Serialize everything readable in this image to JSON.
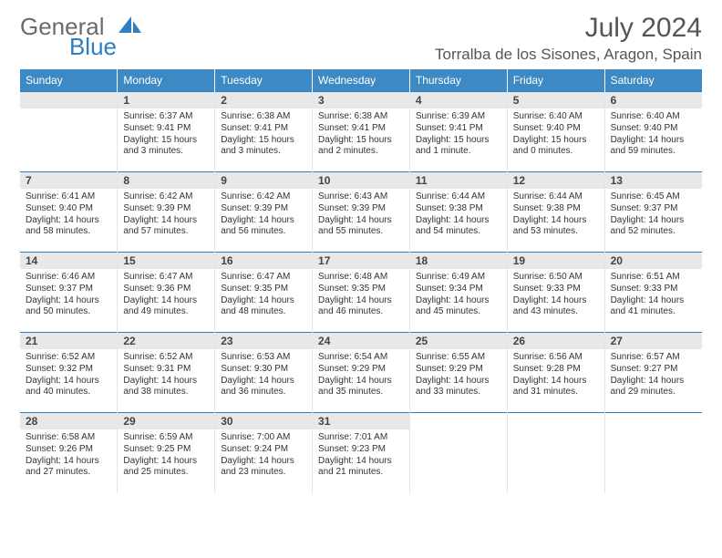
{
  "brand": {
    "part1": "General",
    "part2": "Blue"
  },
  "header": {
    "month_title": "July 2024",
    "location": "Torralba de los Sisones, Aragon, Spain"
  },
  "colors": {
    "header_bg": "#3d89c3",
    "header_text": "#ffffff",
    "row_border": "#2d7fc1",
    "daynum_bg": "#e8e8e8",
    "text": "#333333",
    "brand_gray": "#6b6b6b",
    "brand_blue": "#2d7fc1"
  },
  "weekdays": [
    "Sunday",
    "Monday",
    "Tuesday",
    "Wednesday",
    "Thursday",
    "Friday",
    "Saturday"
  ],
  "layout": {
    "first_weekday_index": 1,
    "days_in_month": 31
  },
  "days": [
    {
      "n": 1,
      "sunrise": "6:37 AM",
      "sunset": "9:41 PM",
      "daylight": "15 hours and 3 minutes."
    },
    {
      "n": 2,
      "sunrise": "6:38 AM",
      "sunset": "9:41 PM",
      "daylight": "15 hours and 3 minutes."
    },
    {
      "n": 3,
      "sunrise": "6:38 AM",
      "sunset": "9:41 PM",
      "daylight": "15 hours and 2 minutes."
    },
    {
      "n": 4,
      "sunrise": "6:39 AM",
      "sunset": "9:41 PM",
      "daylight": "15 hours and 1 minute."
    },
    {
      "n": 5,
      "sunrise": "6:40 AM",
      "sunset": "9:40 PM",
      "daylight": "15 hours and 0 minutes."
    },
    {
      "n": 6,
      "sunrise": "6:40 AM",
      "sunset": "9:40 PM",
      "daylight": "14 hours and 59 minutes."
    },
    {
      "n": 7,
      "sunrise": "6:41 AM",
      "sunset": "9:40 PM",
      "daylight": "14 hours and 58 minutes."
    },
    {
      "n": 8,
      "sunrise": "6:42 AM",
      "sunset": "9:39 PM",
      "daylight": "14 hours and 57 minutes."
    },
    {
      "n": 9,
      "sunrise": "6:42 AM",
      "sunset": "9:39 PM",
      "daylight": "14 hours and 56 minutes."
    },
    {
      "n": 10,
      "sunrise": "6:43 AM",
      "sunset": "9:39 PM",
      "daylight": "14 hours and 55 minutes."
    },
    {
      "n": 11,
      "sunrise": "6:44 AM",
      "sunset": "9:38 PM",
      "daylight": "14 hours and 54 minutes."
    },
    {
      "n": 12,
      "sunrise": "6:44 AM",
      "sunset": "9:38 PM",
      "daylight": "14 hours and 53 minutes."
    },
    {
      "n": 13,
      "sunrise": "6:45 AM",
      "sunset": "9:37 PM",
      "daylight": "14 hours and 52 minutes."
    },
    {
      "n": 14,
      "sunrise": "6:46 AM",
      "sunset": "9:37 PM",
      "daylight": "14 hours and 50 minutes."
    },
    {
      "n": 15,
      "sunrise": "6:47 AM",
      "sunset": "9:36 PM",
      "daylight": "14 hours and 49 minutes."
    },
    {
      "n": 16,
      "sunrise": "6:47 AM",
      "sunset": "9:35 PM",
      "daylight": "14 hours and 48 minutes."
    },
    {
      "n": 17,
      "sunrise": "6:48 AM",
      "sunset": "9:35 PM",
      "daylight": "14 hours and 46 minutes."
    },
    {
      "n": 18,
      "sunrise": "6:49 AM",
      "sunset": "9:34 PM",
      "daylight": "14 hours and 45 minutes."
    },
    {
      "n": 19,
      "sunrise": "6:50 AM",
      "sunset": "9:33 PM",
      "daylight": "14 hours and 43 minutes."
    },
    {
      "n": 20,
      "sunrise": "6:51 AM",
      "sunset": "9:33 PM",
      "daylight": "14 hours and 41 minutes."
    },
    {
      "n": 21,
      "sunrise": "6:52 AM",
      "sunset": "9:32 PM",
      "daylight": "14 hours and 40 minutes."
    },
    {
      "n": 22,
      "sunrise": "6:52 AM",
      "sunset": "9:31 PM",
      "daylight": "14 hours and 38 minutes."
    },
    {
      "n": 23,
      "sunrise": "6:53 AM",
      "sunset": "9:30 PM",
      "daylight": "14 hours and 36 minutes."
    },
    {
      "n": 24,
      "sunrise": "6:54 AM",
      "sunset": "9:29 PM",
      "daylight": "14 hours and 35 minutes."
    },
    {
      "n": 25,
      "sunrise": "6:55 AM",
      "sunset": "9:29 PM",
      "daylight": "14 hours and 33 minutes."
    },
    {
      "n": 26,
      "sunrise": "6:56 AM",
      "sunset": "9:28 PM",
      "daylight": "14 hours and 31 minutes."
    },
    {
      "n": 27,
      "sunrise": "6:57 AM",
      "sunset": "9:27 PM",
      "daylight": "14 hours and 29 minutes."
    },
    {
      "n": 28,
      "sunrise": "6:58 AM",
      "sunset": "9:26 PM",
      "daylight": "14 hours and 27 minutes."
    },
    {
      "n": 29,
      "sunrise": "6:59 AM",
      "sunset": "9:25 PM",
      "daylight": "14 hours and 25 minutes."
    },
    {
      "n": 30,
      "sunrise": "7:00 AM",
      "sunset": "9:24 PM",
      "daylight": "14 hours and 23 minutes."
    },
    {
      "n": 31,
      "sunrise": "7:01 AM",
      "sunset": "9:23 PM",
      "daylight": "14 hours and 21 minutes."
    }
  ],
  "labels": {
    "sunrise": "Sunrise:",
    "sunset": "Sunset:",
    "daylight": "Daylight:"
  }
}
